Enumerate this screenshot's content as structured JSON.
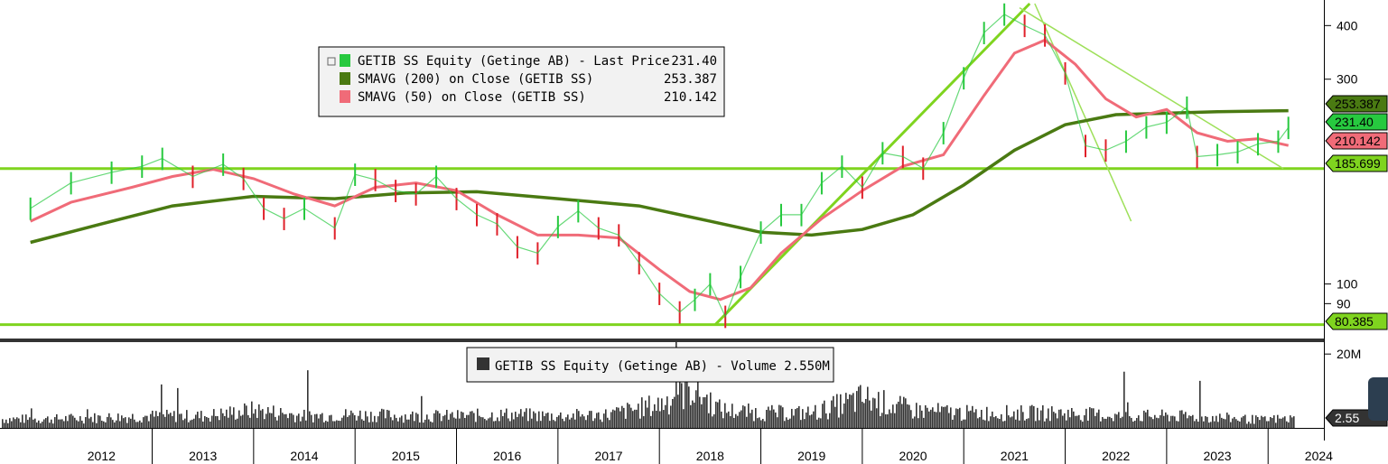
{
  "chart_data": [
    {
      "type": "line",
      "panel": "price",
      "y_scale": "log",
      "ylim": [
        75,
        450
      ],
      "y_ticks": [
        "400",
        "300",
        "100",
        "90"
      ],
      "y_tick_values": [
        400,
        300,
        100,
        90
      ],
      "x_categories": [
        "2012",
        "2013",
        "2014",
        "2015",
        "2016",
        "2017",
        "2018",
        "2019",
        "2020",
        "2021",
        "2022",
        "2023",
        "2024"
      ],
      "legend": [
        {
          "label": "GETIB SS Equity (Getinge AB) - Last Price",
          "value": "231.40",
          "color": "#27c93f"
        },
        {
          "label": "SMAVG (200)  on Close (GETIB SS)",
          "value": "253.387",
          "color": "#4a7a12"
        },
        {
          "label": "SMAVG (50)  on Close (GETIB SS)",
          "value": "210.142",
          "color": "#f06b78"
        }
      ],
      "series": [
        {
          "name": "GETIB SS Equity (Getinge AB) - Last Price",
          "x": [
            2011.8,
            2012.2,
            2012.6,
            2012.9,
            2013.1,
            2013.4,
            2013.7,
            2013.9,
            2014.1,
            2014.3,
            2014.5,
            2014.8,
            2015.0,
            2015.2,
            2015.4,
            2015.6,
            2015.8,
            2016.0,
            2016.2,
            2016.4,
            2016.6,
            2016.8,
            2017.0,
            2017.2,
            2017.4,
            2017.6,
            2017.8,
            2018.0,
            2018.2,
            2018.35,
            2018.5,
            2018.65,
            2018.8,
            2019.0,
            2019.2,
            2019.4,
            2019.6,
            2019.8,
            2020.0,
            2020.2,
            2020.4,
            2020.6,
            2020.8,
            2021.0,
            2021.2,
            2021.4,
            2021.6,
            2021.8,
            2022.0,
            2022.2,
            2022.4,
            2022.6,
            2022.8,
            2023.0,
            2023.2,
            2023.3,
            2023.5,
            2023.7,
            2023.9,
            2024.1,
            2024.2
          ],
          "values": [
            150,
            172,
            182,
            188,
            196,
            178,
            190,
            176,
            150,
            142,
            150,
            135,
            180,
            175,
            165,
            162,
            178,
            158,
            145,
            138,
            122,
            118,
            136,
            148,
            135,
            130,
            112,
            95,
            86,
            92,
            100,
            84,
            104,
            132,
            145,
            145,
            172,
            188,
            168,
            202,
            198,
            186,
            225,
            302,
            385,
            425,
            400,
            380,
            310,
            210,
            205,
            215,
            232,
            238,
            258,
            198,
            200,
            203,
            212,
            215,
            231.4
          ]
        },
        {
          "name": "SMAVG (200)  on Close (GETIB SS)",
          "x": [
            2011.8,
            2012.5,
            2013.2,
            2014.0,
            2014.8,
            2015.5,
            2016.2,
            2017.0,
            2017.8,
            2018.5,
            2019.0,
            2019.5,
            2020.0,
            2020.5,
            2021.0,
            2021.5,
            2022.0,
            2022.5,
            2023.0,
            2023.5,
            2024.2
          ],
          "values": [
            125,
            138,
            152,
            160,
            158,
            163,
            164,
            158,
            152,
            140,
            132,
            130,
            134,
            145,
            170,
            205,
            235,
            248,
            250,
            252,
            253.387
          ]
        },
        {
          "name": "SMAVG (50)  on Close (GETIB SS)",
          "x": [
            2011.8,
            2012.2,
            2012.8,
            2013.2,
            2013.6,
            2014.0,
            2014.4,
            2014.8,
            2015.2,
            2015.6,
            2016.0,
            2016.4,
            2016.8,
            2017.2,
            2017.6,
            2018.0,
            2018.3,
            2018.6,
            2018.9,
            2019.2,
            2019.6,
            2020.0,
            2020.4,
            2020.8,
            2021.2,
            2021.5,
            2021.8,
            2022.1,
            2022.4,
            2022.7,
            2023.0,
            2023.3,
            2023.6,
            2023.9,
            2024.2
          ],
          "values": [
            140,
            155,
            168,
            178,
            185,
            176,
            162,
            152,
            168,
            172,
            165,
            145,
            130,
            130,
            128,
            108,
            96,
            92,
            98,
            118,
            142,
            165,
            188,
            200,
            275,
            345,
            370,
            325,
            270,
            245,
            255,
            225,
            215,
            218,
            210.142
          ]
        }
      ],
      "reference_lines": [
        {
          "value": 185.699,
          "label": "185.699"
        },
        {
          "value": 80.385,
          "label": "80.385"
        }
      ],
      "value_tags": [
        {
          "label": "253.387",
          "color": "#4a7a12"
        },
        {
          "label": "231.40",
          "color": "#27c93f"
        },
        {
          "label": "210.142",
          "color": "#f06b78"
        },
        {
          "label": "185.699",
          "color": "#7fd41f"
        },
        {
          "label": "80.385",
          "color": "#7fd41f"
        }
      ]
    },
    {
      "type": "bar",
      "panel": "volume",
      "legend": [
        {
          "label": "GETIB SS Equity (Getinge AB) - Volume",
          "value": "2.550M",
          "color": "#333333"
        }
      ],
      "y_ticks": [
        "20M"
      ],
      "value_tag": "2.55",
      "series": [
        {
          "name": "GETIB SS Equity (Getinge AB) - Volume",
          "x": [
            2012,
            2012.5,
            2013,
            2013.5,
            2014,
            2014.5,
            2015,
            2015.5,
            2016,
            2016.5,
            2017,
            2017.5,
            2018,
            2018.3,
            2018.6,
            2019,
            2019.5,
            2020,
            2020.5,
            2021,
            2021.5,
            2022,
            2022.5,
            2023,
            2023.5,
            2024
          ],
          "values": [
            3,
            3.5,
            4,
            4,
            6,
            4,
            4.5,
            4,
            4,
            4.5,
            4,
            4.5,
            8,
            14,
            6,
            5,
            5,
            10,
            6,
            5,
            5,
            5,
            4,
            4,
            3.5,
            2.55
          ]
        }
      ]
    }
  ]
}
